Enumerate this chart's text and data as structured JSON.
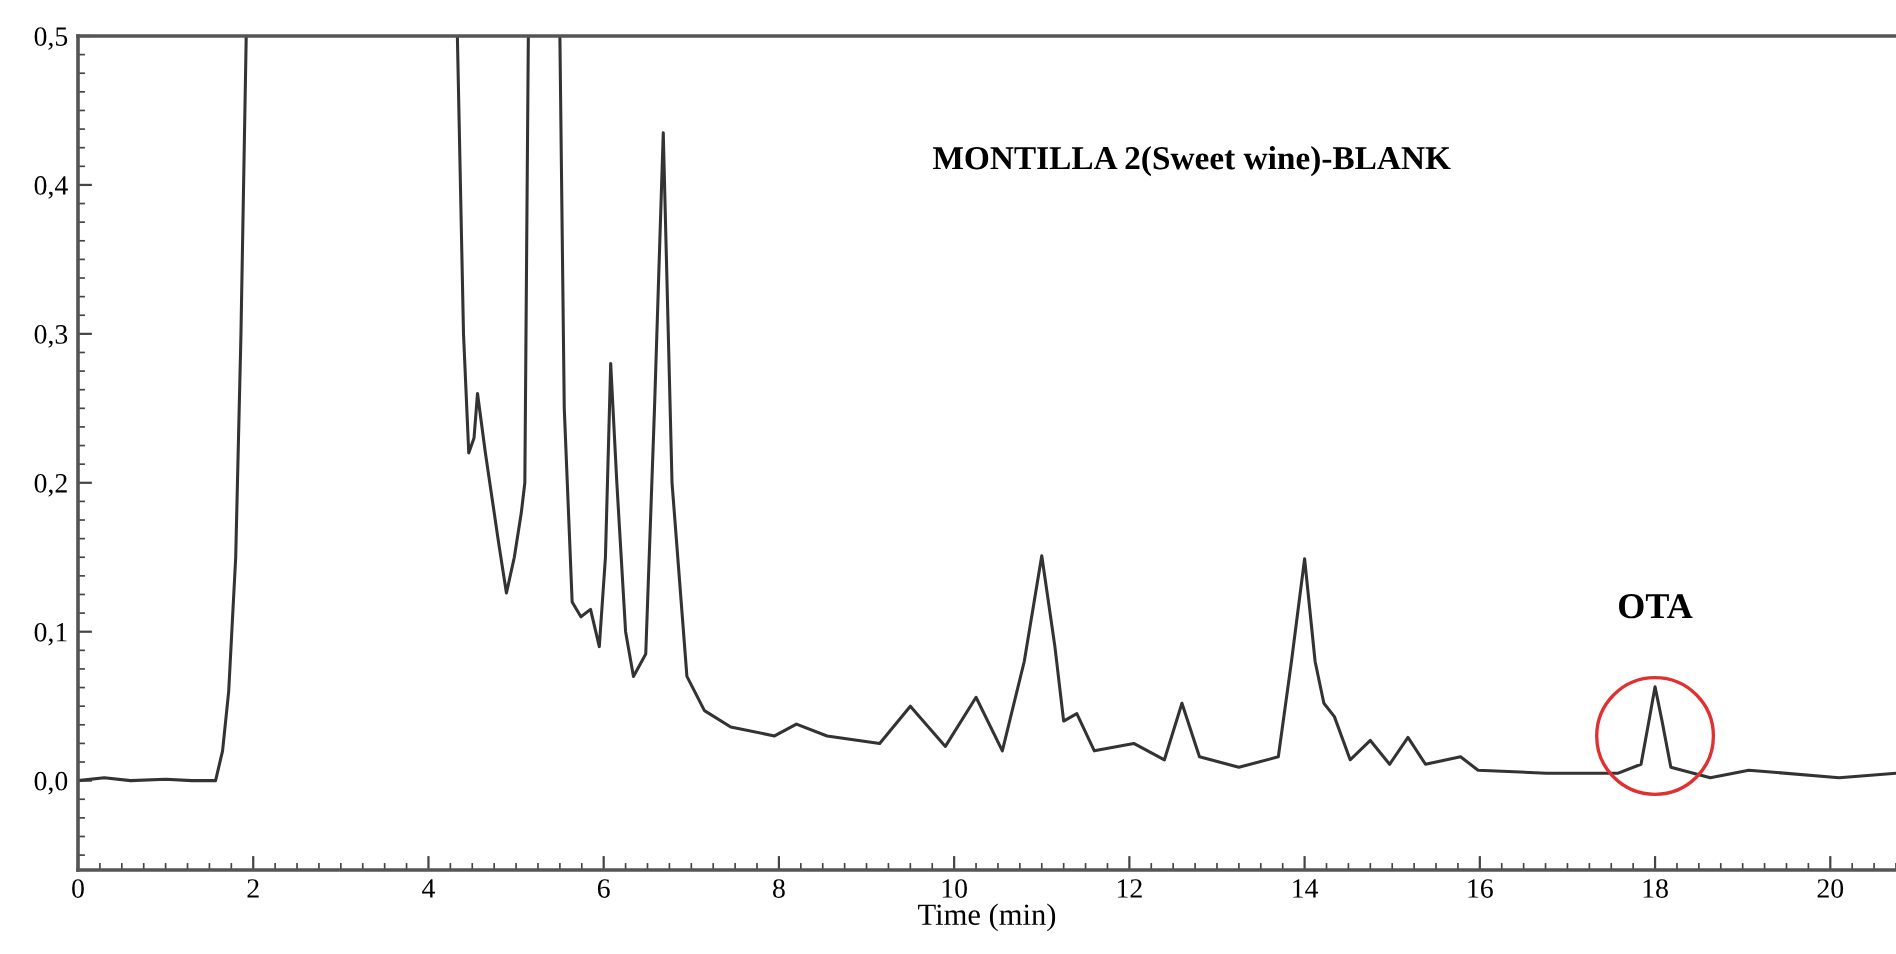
{
  "chart_data": {
    "type": "line",
    "title": "MONTILLA 2(Sweet wine)-BLANK",
    "xlabel": "Time (min)",
    "annotations": [
      {
        "text": "OTA",
        "x": 18.0,
        "y": 0.063
      }
    ],
    "xlim": [
      0,
      20.75
    ],
    "ylim": [
      -0.06,
      0.5
    ],
    "xticks": [
      0,
      2,
      4,
      6,
      8,
      10,
      12,
      14,
      16,
      18,
      20
    ],
    "yticks": [
      {
        "value": 0.0,
        "label": "0,0"
      },
      {
        "value": 0.1,
        "label": "0,1"
      },
      {
        "value": 0.2,
        "label": "0,2"
      },
      {
        "value": 0.3,
        "label": "0,3"
      },
      {
        "value": 0.4,
        "label": "0,4"
      },
      {
        "value": 0.5,
        "label": "0,5"
      }
    ],
    "grid": false,
    "legend": false,
    "marker": "none",
    "line_style": "solid",
    "series": [
      {
        "color": "#333333",
        "x": [
          0,
          0.3,
          0.6,
          1.0,
          1.3,
          1.57,
          1.65,
          1.72,
          1.8,
          1.86,
          1.92,
          2.0,
          4.3,
          4.33,
          4.4,
          4.46,
          4.52,
          4.56,
          4.65,
          4.8,
          4.89,
          4.98,
          5.06,
          5.1,
          5.14,
          5.2,
          5.46,
          5.5,
          5.55,
          5.64,
          5.74,
          5.85,
          5.95,
          6.02,
          6.08,
          6.15,
          6.25,
          6.34,
          6.48,
          6.58,
          6.68,
          6.78,
          6.95,
          7.15,
          7.45,
          7.95,
          8.2,
          8.55,
          9.15,
          9.5,
          9.9,
          10.25,
          10.55,
          10.8,
          11.0,
          11.15,
          11.25,
          11.4,
          11.6,
          12.05,
          12.4,
          12.6,
          12.8,
          13.25,
          13.7,
          13.85,
          14.0,
          14.12,
          14.22,
          14.34,
          14.52,
          14.75,
          14.97,
          15.18,
          15.38,
          15.78,
          15.98,
          16.76,
          17.58,
          17.84,
          17.93,
          18.0,
          18.08,
          18.18,
          18.63,
          19.07,
          20.1,
          20.75
        ],
        "values": [
          0.0,
          0.002,
          0.0,
          0.001,
          0.0,
          0.0,
          0.02,
          0.06,
          0.15,
          0.3,
          0.5,
          null,
          null,
          0.5,
          0.3,
          0.22,
          0.23,
          0.26,
          0.22,
          0.16,
          0.126,
          0.15,
          0.18,
          0.2,
          0.5,
          null,
          null,
          0.5,
          0.25,
          0.12,
          0.11,
          0.115,
          0.09,
          0.15,
          0.28,
          0.2,
          0.1,
          0.07,
          0.085,
          0.25,
          0.435,
          0.2,
          0.07,
          0.047,
          0.036,
          0.03,
          0.038,
          0.03,
          0.025,
          0.05,
          0.023,
          0.056,
          0.02,
          0.08,
          0.151,
          0.09,
          0.04,
          0.045,
          0.02,
          0.025,
          0.014,
          0.052,
          0.016,
          0.009,
          0.016,
          0.08,
          0.149,
          0.08,
          0.052,
          0.043,
          0.014,
          0.027,
          0.011,
          0.029,
          0.011,
          0.016,
          0.007,
          0.005,
          0.005,
          0.011,
          0.04,
          0.063,
          0.04,
          0.009,
          0.002,
          0.007,
          0.002,
          0.005
        ]
      }
    ]
  }
}
